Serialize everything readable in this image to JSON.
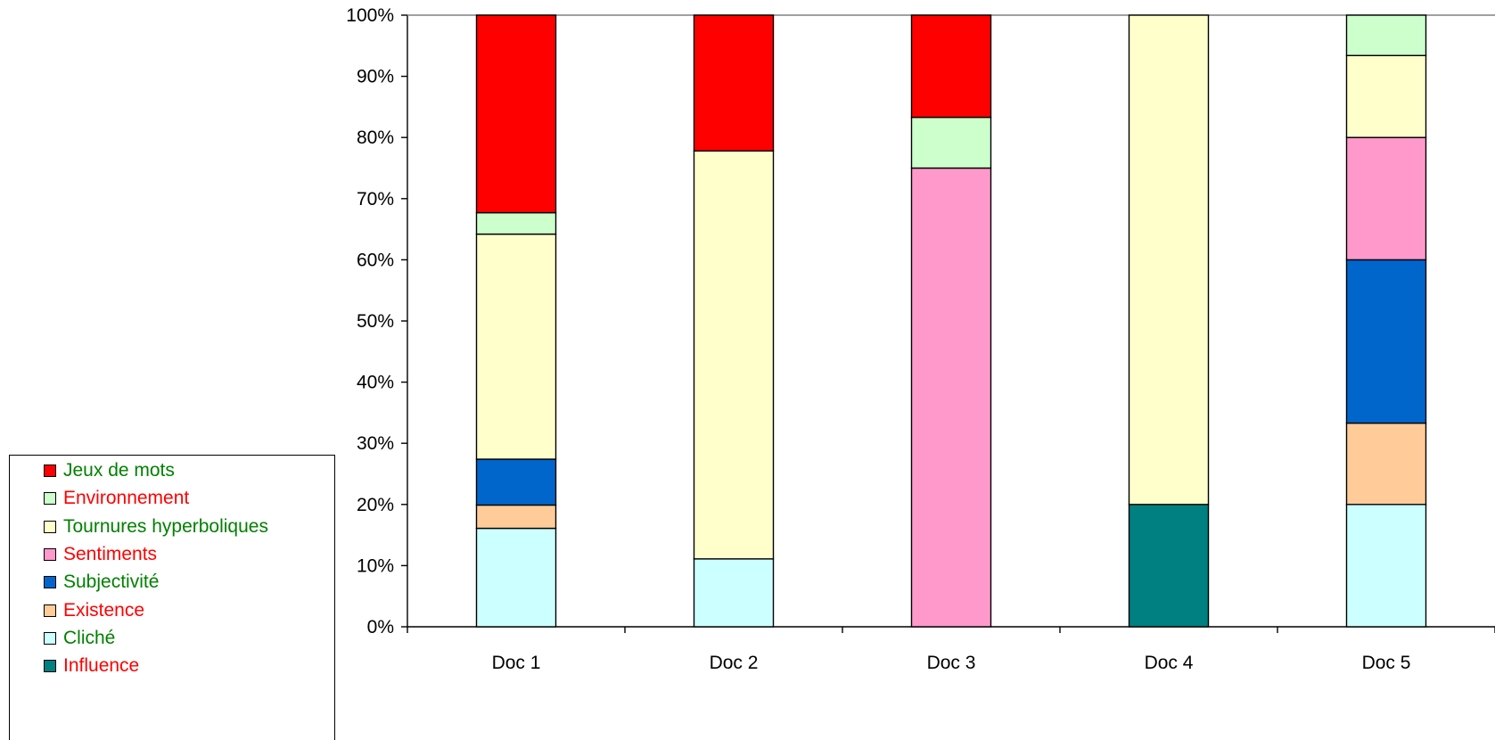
{
  "chart_data": {
    "type": "bar",
    "stacked": true,
    "normalized": true,
    "categories": [
      "Doc 1",
      "Doc 2",
      "Doc 3",
      "Doc 4",
      "Doc 5"
    ],
    "y_ticks": [
      "0%",
      "10%",
      "20%",
      "30%",
      "40%",
      "50%",
      "60%",
      "70%",
      "80%",
      "90%",
      "100%"
    ],
    "ylim": [
      0,
      100
    ],
    "grid": false,
    "legend_position": "bottom-left",
    "series": [
      {
        "name": "Influence",
        "color": "#008080",
        "label_color": "#ff0000",
        "values": [
          0,
          0,
          0,
          20,
          0
        ]
      },
      {
        "name": "Cliché",
        "color": "#ccffff",
        "label_color": "#008000",
        "values": [
          16.1,
          11.1,
          0,
          0,
          20
        ]
      },
      {
        "name": "Existence",
        "color": "#ffcc99",
        "label_color": "#ff0000",
        "values": [
          3.8,
          0,
          0,
          0,
          13.3
        ]
      },
      {
        "name": "Subjectivité",
        "color": "#0066cc",
        "label_color": "#008000",
        "values": [
          7.5,
          0,
          0,
          0,
          26.7
        ]
      },
      {
        "name": "Sentiments",
        "color": "#ff99cc",
        "label_color": "#ff0000",
        "values": [
          0,
          0,
          75,
          0,
          20
        ]
      },
      {
        "name": "Tournures hyperboliques",
        "color": "#ffffcc",
        "label_color": "#008000",
        "values": [
          36.8,
          66.7,
          0,
          80,
          13.4
        ]
      },
      {
        "name": "Environnement",
        "color": "#ccffcc",
        "label_color": "#ff0000",
        "values": [
          3.5,
          0,
          8.3,
          0,
          6.6
        ]
      },
      {
        "name": "Jeux de mots",
        "color": "#ff0000",
        "label_color": "#008000",
        "values": [
          32.3,
          22.2,
          16.7,
          0,
          0
        ]
      }
    ]
  },
  "legend": {
    "items": [
      {
        "label": "Jeux de mots",
        "swatch_color": "#ff0000",
        "text_color": "#008000"
      },
      {
        "label": "Environnement",
        "swatch_color": "#ccffcc",
        "text_color": "#ff0000"
      },
      {
        "label": "Tournures hyperboliques",
        "swatch_color": "#ffffcc",
        "text_color": "#008000"
      },
      {
        "label": "Sentiments",
        "swatch_color": "#ff99cc",
        "text_color": "#ff0000"
      },
      {
        "label": "Subjectivité",
        "swatch_color": "#0066cc",
        "text_color": "#008000"
      },
      {
        "label": "Existence",
        "swatch_color": "#ffcc99",
        "text_color": "#ff0000"
      },
      {
        "label": "Cliché",
        "swatch_color": "#ccffff",
        "text_color": "#008000"
      },
      {
        "label": "Influence",
        "swatch_color": "#008080",
        "text_color": "#ff0000"
      }
    ]
  }
}
